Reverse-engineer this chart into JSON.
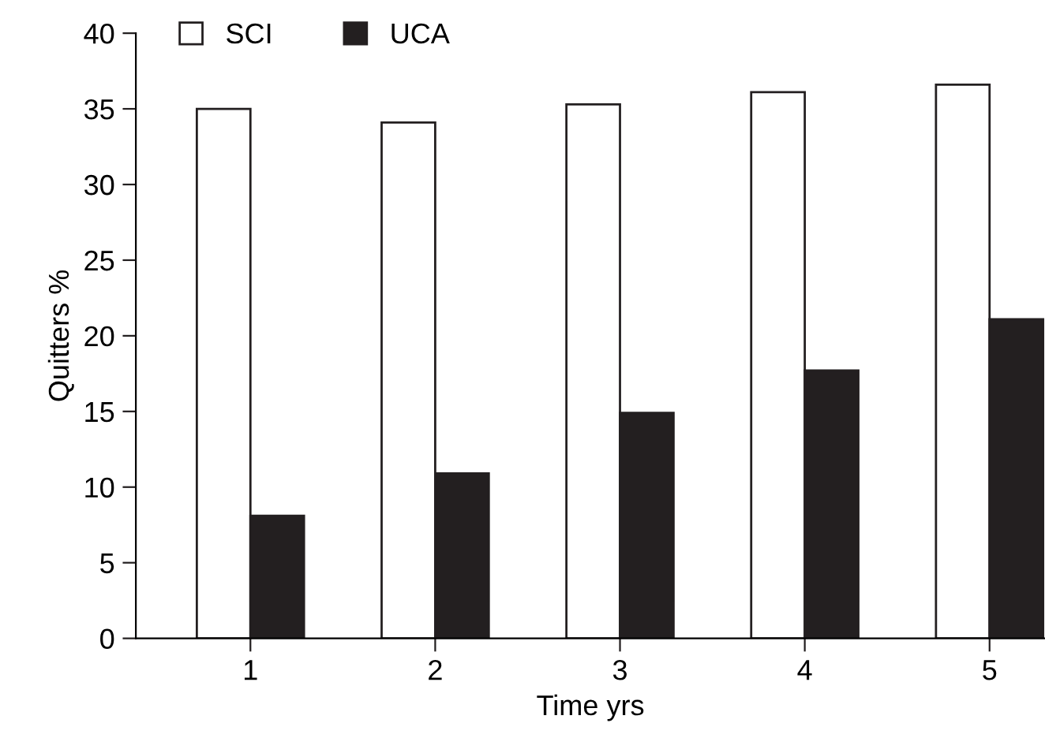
{
  "chart_data": {
    "type": "bar",
    "xlabel": "Time yrs",
    "ylabel": "Quitters %",
    "categories": [
      "1",
      "2",
      "3",
      "4",
      "5"
    ],
    "series": [
      {
        "name": "SCI",
        "color": "#ffffff",
        "values": [
          35.0,
          34.1,
          35.3,
          36.1,
          36.6
        ]
      },
      {
        "name": "UCA",
        "color": "#231f20",
        "values": [
          8.1,
          10.9,
          14.9,
          17.7,
          21.1
        ]
      }
    ],
    "ylim": [
      0,
      40
    ],
    "yticks": [
      0,
      5,
      10,
      15,
      20,
      25,
      30,
      35,
      40
    ],
    "grid": false,
    "legend": "top left"
  }
}
